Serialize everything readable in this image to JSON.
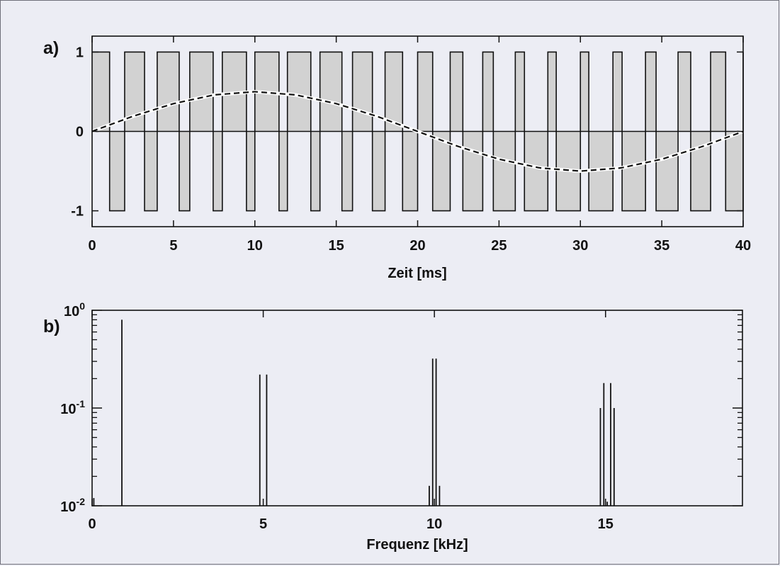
{
  "chart_data": [
    {
      "panel_label": "a)",
      "type": "line",
      "xlabel": "Zeit [ms]",
      "ylabel": "",
      "xlim": [
        0,
        40
      ],
      "ylim": [
        -1.2,
        1.2
      ],
      "xticks": [
        "0",
        "5",
        "10",
        "15",
        "20",
        "25",
        "30",
        "35",
        "40"
      ],
      "yticks": [
        "1",
        "0",
        "-1"
      ],
      "pwm": {
        "carrier_period_ms": 2,
        "levels": [
          1,
          -1
        ],
        "fill_color": "#d2d2d2"
      },
      "series": [
        {
          "style": "dashed",
          "color": "#111111",
          "x": [
            0,
            2.5,
            5,
            7.5,
            10,
            12.5,
            15,
            17.5,
            20,
            22.5,
            25,
            27.5,
            30,
            32.5,
            35,
            37.5,
            40
          ],
          "y": [
            0,
            0.19,
            0.35,
            0.46,
            0.5,
            0.46,
            0.35,
            0.19,
            0,
            -0.19,
            -0.35,
            -0.46,
            -0.5,
            -0.46,
            -0.35,
            -0.19,
            0
          ]
        }
      ]
    },
    {
      "panel_label": "b)",
      "type": "bar",
      "xlabel": "Frequenz [kHz]",
      "ylabel": "",
      "xlim": [
        0,
        19
      ],
      "ylim": [
        0.01,
        1
      ],
      "yscale": "log",
      "xticks": [
        "0",
        "5",
        "10",
        "15"
      ],
      "yticks": [
        {
          "base": "10",
          "exp": "0"
        },
        {
          "base": "10",
          "exp": "-1"
        },
        {
          "base": "10",
          "exp": "-2"
        }
      ],
      "x": [
        0.05,
        0.87,
        4.9,
        5.1,
        9.85,
        9.95,
        10.05,
        10.15,
        14.85,
        14.95,
        15.05,
        15.15,
        15.25
      ],
      "values": [
        0.012,
        0.8,
        0.22,
        0.22,
        0.016,
        0.32,
        0.32,
        0.016,
        0.1,
        0.18,
        0.011,
        0.18,
        0.1
      ]
    }
  ]
}
